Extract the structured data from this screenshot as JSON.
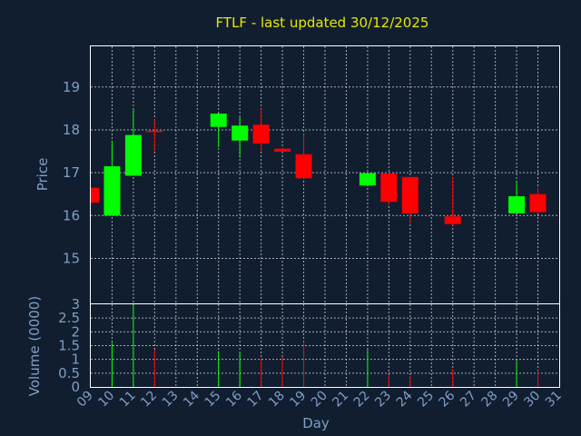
{
  "chart_data": {
    "type": "candlestick",
    "title": "FTLF - last updated 30/12/2025",
    "xlabel": "Day",
    "colors": {
      "up": "#00ff00",
      "down": "#ff0000",
      "background": "#111e30"
    },
    "x_ticks": [
      "09",
      "10",
      "11",
      "12",
      "13",
      "14",
      "15",
      "16",
      "17",
      "18",
      "19",
      "20",
      "21",
      "22",
      "23",
      "24",
      "25",
      "26",
      "27",
      "28",
      "29",
      "30",
      "31"
    ],
    "price_panel": {
      "ylabel": "Price",
      "ylim": [
        13.95,
        19.95
      ],
      "y_ticks": [
        "15",
        "16",
        "17",
        "18",
        "19"
      ],
      "grid": true
    },
    "volume_panel": {
      "ylabel": "Volume (0000)",
      "ylim": [
        0,
        3
      ],
      "y_ticks": [
        "0",
        "0.5",
        "1",
        "1.5",
        "2",
        "2.5",
        "3"
      ],
      "grid": true
    },
    "candles": [
      {
        "day": "09",
        "open": 16.65,
        "high": 16.65,
        "low": 16.28,
        "close": 16.3,
        "volume": 0
      },
      {
        "day": "10",
        "open": 16.0,
        "high": 17.75,
        "low": 16.0,
        "close": 17.15,
        "volume": 1.6
      },
      {
        "day": "11",
        "open": 16.93,
        "high": 18.5,
        "low": 16.93,
        "close": 17.88,
        "volume": 2.95
      },
      {
        "day": "12",
        "open": 17.98,
        "high": 18.25,
        "low": 17.5,
        "close": 17.95,
        "volume": 1.35
      },
      {
        "day": "15",
        "open": 18.07,
        "high": 18.4,
        "low": 17.6,
        "close": 18.38,
        "volume": 1.3
      },
      {
        "day": "16",
        "open": 17.75,
        "high": 18.3,
        "low": 17.35,
        "close": 18.1,
        "volume": 1.25
      },
      {
        "day": "17",
        "open": 18.12,
        "high": 18.5,
        "low": 17.5,
        "close": 17.68,
        "volume": 1.05
      },
      {
        "day": "18",
        "open": 17.56,
        "high": 17.58,
        "low": 17.48,
        "close": 17.49,
        "volume": 1.1
      },
      {
        "day": "19",
        "open": 17.43,
        "high": 17.9,
        "low": 16.85,
        "close": 16.87,
        "volume": 1.65
      },
      {
        "day": "22",
        "open": 16.7,
        "high": 17.0,
        "low": 16.68,
        "close": 16.99,
        "volume": 1.35
      },
      {
        "day": "23",
        "open": 16.98,
        "high": 17.0,
        "low": 16.25,
        "close": 16.32,
        "volume": 0.45
      },
      {
        "day": "24",
        "open": 16.9,
        "high": 16.9,
        "low": 15.8,
        "close": 16.05,
        "volume": 0.4
      },
      {
        "day": "26",
        "open": 15.98,
        "high": 16.9,
        "low": 15.78,
        "close": 15.8,
        "volume": 0.65
      },
      {
        "day": "29",
        "open": 16.05,
        "high": 16.8,
        "low": 16.05,
        "close": 16.45,
        "volume": 0.95
      },
      {
        "day": "30",
        "open": 16.5,
        "high": 16.65,
        "low": 16.07,
        "close": 16.08,
        "volume": 0.6
      }
    ]
  }
}
